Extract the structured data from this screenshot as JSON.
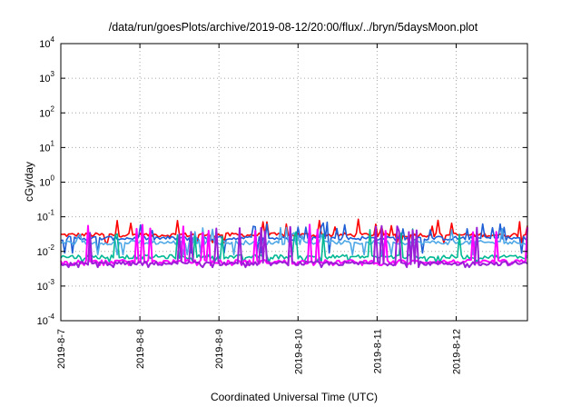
{
  "chart_data": {
    "type": "line",
    "title": "/data/run/goesPlots/archive/2019-08-12/20:00/flux/../bryn/5daysMoon.plot",
    "xlabel": "Coordinated Universal Time (UTC)",
    "ylabel": "cGy/day",
    "yscale": "log",
    "ylim": [
      0.0001,
      10000
    ],
    "y_ticks": [
      {
        "base": "10",
        "exp": "-4",
        "value": 0.0001
      },
      {
        "base": "10",
        "exp": "-3",
        "value": 0.001
      },
      {
        "base": "10",
        "exp": "-2",
        "value": 0.01
      },
      {
        "base": "10",
        "exp": "-1",
        "value": 0.1
      },
      {
        "base": "10",
        "exp": "0",
        "value": 1
      },
      {
        "base": "10",
        "exp": "1",
        "value": 10
      },
      {
        "base": "10",
        "exp": "2",
        "value": 100
      },
      {
        "base": "10",
        "exp": "3",
        "value": 1000
      },
      {
        "base": "10",
        "exp": "4",
        "value": 10000
      }
    ],
    "xlim": [
      "2019-8-7",
      "2019-8-12 20:00"
    ],
    "x_ticks": [
      "2019-8-7",
      "2019-8-8",
      "2019-8-9",
      "2019-8-10",
      "2019-8-11",
      "2019-8-12"
    ],
    "grid": true,
    "series": [
      {
        "color": "#ff0000",
        "typical": 0.03,
        "spike_min": 0.018,
        "spike_max": 0.09
      },
      {
        "color": "#1f5fd6",
        "typical": 0.024,
        "spike_min": 0.009,
        "spike_max": 0.07
      },
      {
        "color": "#4fa8e6",
        "typical": 0.018,
        "spike_min": 0.008,
        "spike_max": 0.05
      },
      {
        "color": "#00b894",
        "typical": 0.007,
        "spike_min": 0.005,
        "spike_max": 0.045
      },
      {
        "color": "#ff00ff",
        "typical": 0.005,
        "spike_min": 0.004,
        "spike_max": 0.06
      },
      {
        "color": "#9b1fd6",
        "typical": 0.0045,
        "spike_min": 0.0035,
        "spike_max": 0.055
      }
    ]
  }
}
